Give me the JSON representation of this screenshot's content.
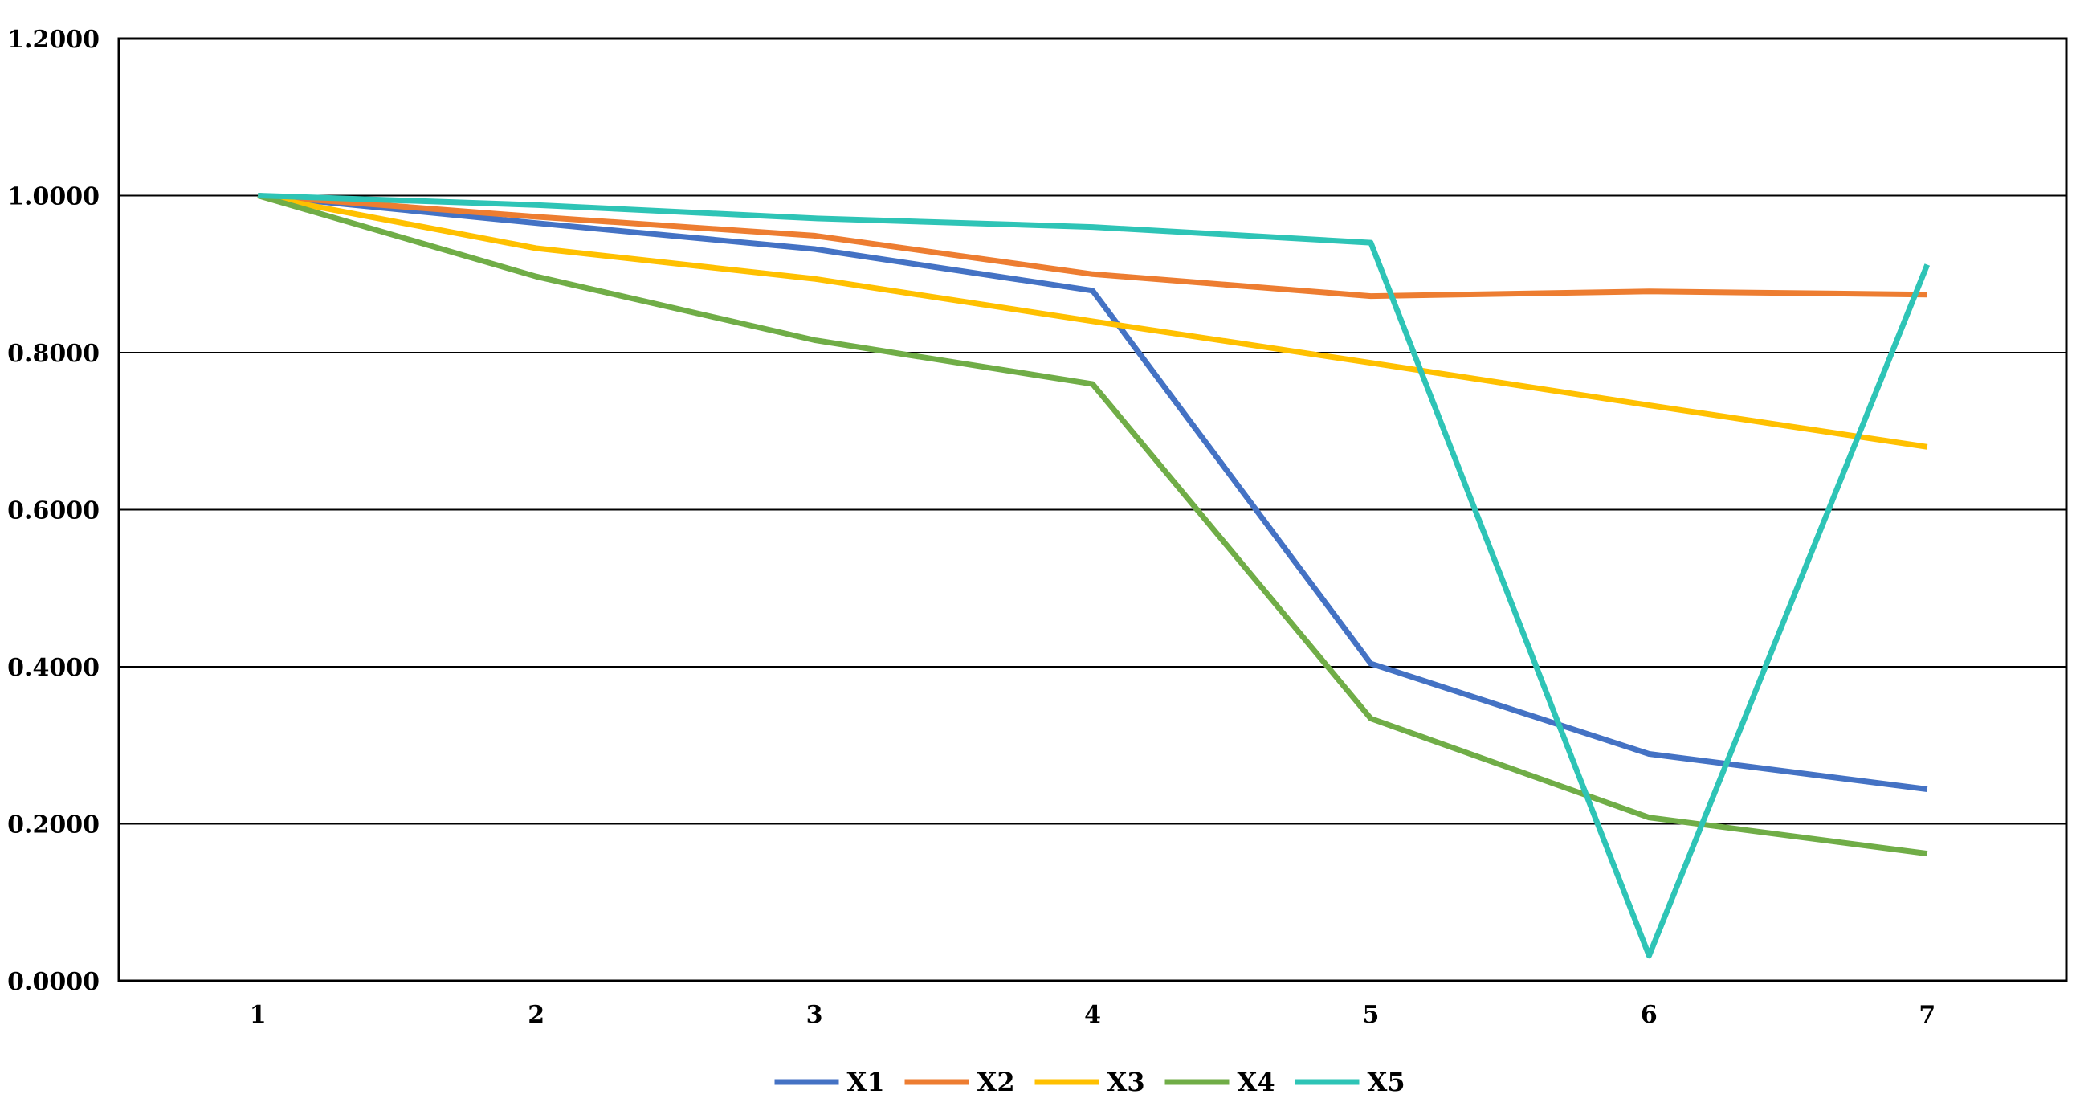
{
  "chart_data": {
    "type": "line",
    "title": "",
    "xlabel": "",
    "ylabel": "",
    "categories": [
      "1",
      "2",
      "3",
      "4",
      "5",
      "6",
      "7"
    ],
    "ylim": [
      0,
      1.2
    ],
    "yticks": [
      "0.0000",
      "0.2000",
      "0.4000",
      "0.6000",
      "0.8000",
      "1.0000",
      "1.2000"
    ],
    "grid": true,
    "legend_position": "bottom",
    "series": [
      {
        "name": "X1",
        "color": "#4472C4",
        "values": [
          1.0,
          0.965,
          0.932,
          0.879,
          0.404,
          0.289,
          0.244
        ]
      },
      {
        "name": "X2",
        "color": "#ED7D31",
        "values": [
          1.0,
          0.973,
          0.949,
          0.9,
          0.872,
          0.878,
          0.874
        ]
      },
      {
        "name": "X3",
        "color": "#FFC000",
        "values": [
          1.0,
          0.933,
          0.894,
          0.84,
          0.787,
          0.733,
          0.68
        ]
      },
      {
        "name": "X4",
        "color": "#70AD47",
        "values": [
          1.0,
          0.897,
          0.816,
          0.76,
          0.334,
          0.208,
          0.162
        ]
      },
      {
        "name": "X5",
        "color": "#2EC4B6",
        "values": [
          1.0,
          0.988,
          0.971,
          0.96,
          0.94,
          0.032,
          0.912
        ]
      }
    ]
  }
}
